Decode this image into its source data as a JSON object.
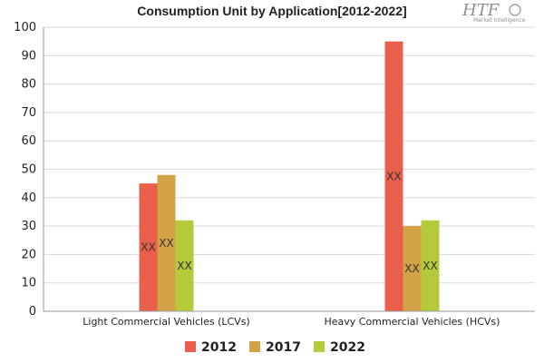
{
  "chart_data": {
    "type": "bar",
    "title": "Consumption Unit by  Application[2012-2022]",
    "categories": [
      "Light Commercial Vehicles (LCVs)",
      "Heavy Commercial Vehicles (HCVs)"
    ],
    "series": [
      {
        "name": "2012",
        "values": [
          45,
          95
        ],
        "labels": [
          "XX",
          "XX"
        ],
        "color": "#e8604c"
      },
      {
        "name": "2017",
        "values": [
          48,
          30
        ],
        "labels": [
          "XX",
          "XX"
        ],
        "color": "#d4a246"
      },
      {
        "name": "2022",
        "values": [
          32,
          32
        ],
        "labels": [
          "XX",
          "XX"
        ],
        "color": "#b6c93a"
      }
    ],
    "yticks": [
      0,
      10,
      20,
      30,
      40,
      50,
      60,
      70,
      80,
      90,
      100
    ],
    "ylim": [
      0,
      100
    ],
    "grid": true,
    "legend": "bottom"
  },
  "logo": {
    "main": "HTF",
    "sub": "Market Intelligence"
  }
}
